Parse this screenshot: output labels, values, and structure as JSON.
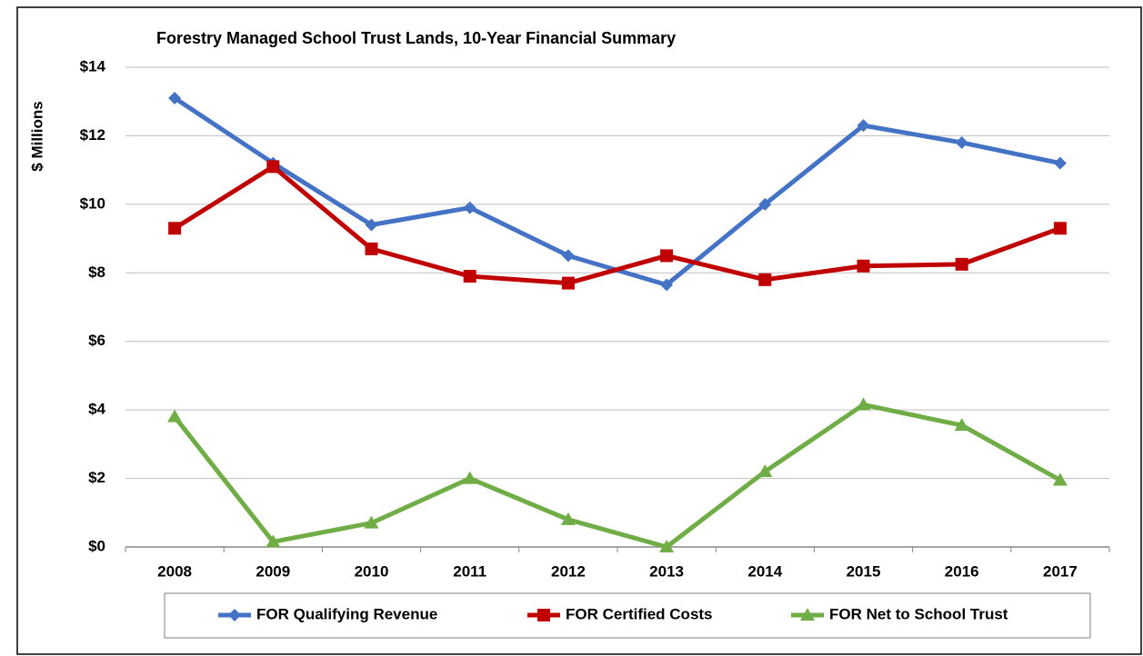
{
  "chart_data": {
    "type": "line",
    "title": "Forestry Managed School Trust Lands, 10-Year Financial Summary",
    "y_label": "$ Millions",
    "categories": [
      "2008",
      "2009",
      "2010",
      "2011",
      "2012",
      "2013",
      "2014",
      "2015",
      "2016",
      "2017"
    ],
    "series": [
      {
        "name": "FOR Qualifying Revenue",
        "color": "#4472c4",
        "marker": "diamond",
        "values": [
          13.1,
          11.2,
          9.4,
          9.9,
          8.5,
          7.65,
          10.0,
          12.3,
          11.8,
          11.2
        ]
      },
      {
        "name": "FOR Certified Costs",
        "color": "#c00000",
        "marker": "square",
        "values": [
          9.3,
          11.1,
          8.7,
          7.9,
          7.7,
          8.5,
          7.8,
          8.2,
          8.25,
          9.3
        ]
      },
      {
        "name": "FOR Net to School Trust",
        "color": "#70ad47",
        "marker": "triangle",
        "values": [
          3.8,
          0.15,
          0.7,
          2.0,
          0.8,
          0.0,
          2.2,
          4.15,
          3.55,
          1.95
        ]
      }
    ],
    "ylim": [
      0,
      14
    ],
    "yticks": [
      {
        "value": 0,
        "label": "$0"
      },
      {
        "value": 2,
        "label": "$2"
      },
      {
        "value": 4,
        "label": "$4"
      },
      {
        "value": 6,
        "label": "$6"
      },
      {
        "value": 8,
        "label": "$8"
      },
      {
        "value": 10,
        "label": "$10"
      },
      {
        "value": 12,
        "label": "$12"
      },
      {
        "value": 14,
        "label": "$14"
      }
    ],
    "grid": true,
    "legend": "bottom"
  }
}
